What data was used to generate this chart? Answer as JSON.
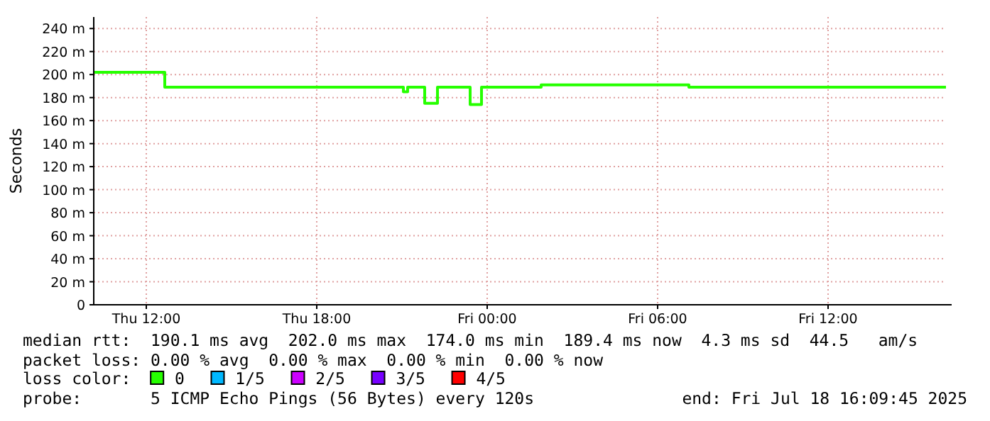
{
  "chart_data": {
    "type": "step",
    "ylabel": "Seconds",
    "legend_title": "loss color:",
    "legend": "bottom",
    "grid": true,
    "x": [
      "2025-07-17T10:09",
      "2025-07-17T12:33",
      "2025-07-17T12:39",
      "2025-07-17T21:00",
      "2025-07-17T21:03",
      "2025-07-17T21:09",
      "2025-07-17T21:12",
      "2025-07-17T21:42",
      "2025-07-17T21:48",
      "2025-07-17T22:12",
      "2025-07-17T22:15",
      "2025-07-17T23:21",
      "2025-07-17T23:24",
      "2025-07-17T23:45",
      "2025-07-17T23:48",
      "2025-07-18T01:51",
      "2025-07-18T01:54",
      "2025-07-18T07:00",
      "2025-07-18T07:06",
      "2025-07-18T16:09"
    ],
    "series": [
      {
        "name": "0",
        "color": "#26ff00",
        "values": [
          202,
          202,
          189,
          189,
          185,
          185,
          189,
          189,
          175,
          175,
          189,
          189,
          174,
          174,
          189,
          189,
          191,
          191,
          189,
          189
        ]
      },
      {
        "name": "1/5",
        "color": "#00b8ff",
        "values": [
          null,
          null,
          null,
          null,
          null,
          null,
          null,
          null,
          null,
          null,
          null,
          null,
          null,
          null,
          null,
          null,
          null,
          null,
          null,
          null
        ]
      },
      {
        "name": "2/5",
        "color": "#cc00ff",
        "values": [
          null,
          null,
          null,
          null,
          null,
          null,
          null,
          null,
          null,
          null,
          null,
          null,
          null,
          null,
          null,
          null,
          null,
          null,
          null,
          null
        ]
      },
      {
        "name": "3/5",
        "color": "#7700ff",
        "values": [
          null,
          null,
          null,
          null,
          null,
          null,
          null,
          null,
          null,
          null,
          null,
          null,
          null,
          null,
          null,
          null,
          null,
          null,
          null,
          null
        ]
      },
      {
        "name": "4/5",
        "color": "#ff0000",
        "values": [
          null,
          null,
          null,
          null,
          null,
          null,
          null,
          null,
          null,
          null,
          null,
          null,
          null,
          null,
          null,
          null,
          null,
          null,
          null,
          null
        ]
      }
    ],
    "xlim": [
      "2025-07-17T10:09",
      "2025-07-18T16:09"
    ],
    "xticks": [
      {
        "value": "2025-07-17T12:00",
        "label": "Thu 12:00"
      },
      {
        "value": "2025-07-17T18:00",
        "label": "Thu 18:00"
      },
      {
        "value": "2025-07-18T00:00",
        "label": "Fri 00:00"
      },
      {
        "value": "2025-07-18T06:00",
        "label": "Fri 06:00"
      },
      {
        "value": "2025-07-18T12:00",
        "label": "Fri 12:00"
      }
    ],
    "ylim": [
      0,
      250
    ],
    "yticks": [
      0,
      {
        "value": 20,
        "label": "20 m"
      },
      {
        "value": 40,
        "label": "40 m"
      },
      {
        "value": 60,
        "label": "60 m"
      },
      {
        "value": 80,
        "label": "80 m"
      },
      {
        "value": 100,
        "label": "100 m"
      },
      {
        "value": 120,
        "label": "120 m"
      },
      {
        "value": 140,
        "label": "140 m"
      },
      {
        "value": 160,
        "label": "160 m"
      },
      {
        "value": 180,
        "label": "180 m"
      },
      {
        "value": 200,
        "label": "200 m"
      },
      {
        "value": 220,
        "label": "220 m"
      },
      {
        "value": 240,
        "label": "240 m"
      }
    ],
    "annotations": [
      "median rtt:  190.1 ms avg  202.0 ms max  174.0 ms min  189.4 ms now  4.3 ms sd  44.5   am/s",
      "packet loss: 0.00 % avg  0.00 % max  0.00 % min  0.00 % now",
      "probe:       5 ICMP Echo Pings (56 Bytes) every 120s",
      "end: Fri Jul 18 16:09:45 2025"
    ]
  }
}
